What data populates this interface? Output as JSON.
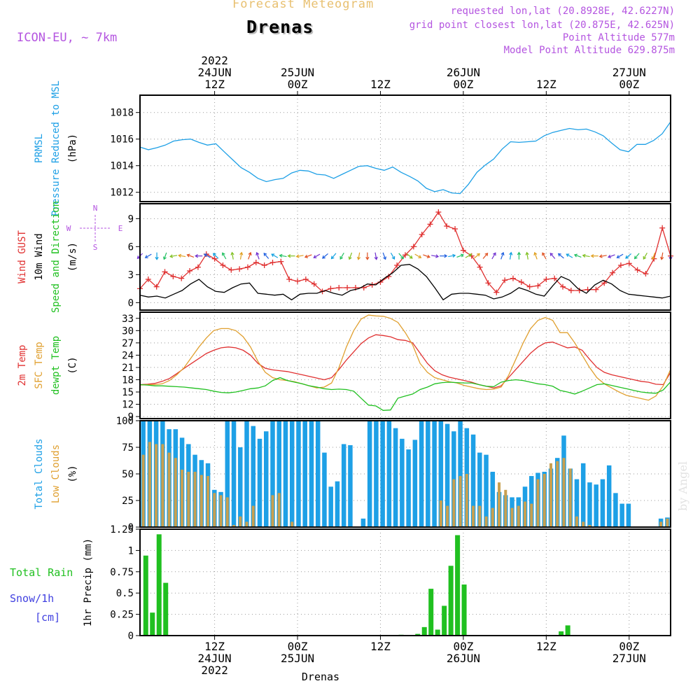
{
  "header": {
    "super_title": "Forecast Meteogram",
    "title": "Drenas",
    "model": "ICON-EU, ~ 7km",
    "requested": "requested lon,lat (20.8928E, 42.6227N)",
    "grid_point": "grid point closest lon,lat (20.875E, 42.625N)",
    "point_altitude": "Point Altitude 577m",
    "model_altitude": "Model Point Altitude 629.875m",
    "footer": "Drenas",
    "credit": "by Angel"
  },
  "time_axis": {
    "range": [
      0,
      64
    ],
    "top_labels": [
      {
        "x": 9,
        "lines": [
          "2022",
          "24JUN",
          "12Z"
        ]
      },
      {
        "x": 19,
        "lines": [
          "25JUN",
          "00Z"
        ]
      },
      {
        "x": 29,
        "lines": [
          "12Z"
        ]
      },
      {
        "x": 39,
        "lines": [
          "26JUN",
          "00Z"
        ]
      },
      {
        "x": 49,
        "lines": [
          "12Z"
        ]
      },
      {
        "x": 59,
        "lines": [
          "27JUN",
          "00Z"
        ]
      }
    ],
    "bottom_labels": [
      {
        "x": 9,
        "lines": [
          "12Z",
          "24JUN",
          "2022"
        ]
      },
      {
        "x": 19,
        "lines": [
          "00Z",
          "25JUN"
        ]
      },
      {
        "x": 29,
        "lines": [
          "12Z"
        ]
      },
      {
        "x": 39,
        "lines": [
          "00Z",
          "26JUN"
        ]
      },
      {
        "x": 49,
        "lines": [
          "12Z"
        ]
      },
      {
        "x": 59,
        "lines": [
          "00Z",
          "27JUN"
        ]
      }
    ]
  },
  "chart_data": [
    {
      "type": "line",
      "panel": "pressure",
      "ylabel_lines": [
        {
          "text": "PRMSL",
          "color": "#1ea0e6"
        },
        {
          "text": "Pressure Reduced to MSL",
          "color": "#1ea0e6"
        },
        {
          "text": "(hPa)",
          "color": "#000000"
        }
      ],
      "ylim": [
        1011.3,
        1019.3
      ],
      "yticks": [
        1012,
        1014,
        1016,
        1018
      ],
      "series": [
        {
          "color": "#1ea0e6",
          "values": [
            1015.4,
            1015.2,
            1015.35,
            1015.55,
            1015.85,
            1015.95,
            1016.0,
            1015.75,
            1015.55,
            1015.65,
            1015.05,
            1014.45,
            1013.85,
            1013.5,
            1013.05,
            1012.8,
            1012.95,
            1013.05,
            1013.45,
            1013.65,
            1013.6,
            1013.35,
            1013.3,
            1013.05,
            1013.35,
            1013.65,
            1013.95,
            1014.0,
            1013.8,
            1013.65,
            1013.9,
            1013.5,
            1013.2,
            1012.85,
            1012.3,
            1012.05,
            1012.2,
            1011.95,
            1011.9,
            1012.6,
            1013.5,
            1014.05,
            1014.5,
            1015.25,
            1015.8,
            1015.75,
            1015.8,
            1015.85,
            1016.25,
            1016.5,
            1016.65,
            1016.8,
            1016.7,
            1016.75,
            1016.55,
            1016.25,
            1015.7,
            1015.2,
            1015.05,
            1015.6,
            1015.6,
            1015.9,
            1016.4,
            1017.3
          ]
        }
      ]
    },
    {
      "type": "line",
      "panel": "wind",
      "ylabel_lines": [
        {
          "text": "Wind GUST",
          "color": "#e03030"
        },
        {
          "text": "10m Wind",
          "color": "#000000"
        },
        {
          "text": "Speed and Direction",
          "color": "#20c020"
        },
        {
          "text": "(m/s)",
          "color": "#000000"
        }
      ],
      "compass": {
        "n": "N",
        "s": "S",
        "w": "W",
        "e": "E"
      },
      "ylim": [
        -0.8,
        10.6
      ],
      "yticks": [
        0,
        3,
        6,
        9
      ],
      "series": [
        {
          "name": "Wind GUST",
          "color": "#e03030",
          "marker": "+",
          "values": [
            1.5,
            2.5,
            1.7,
            3.3,
            2.8,
            2.6,
            3.4,
            3.8,
            5.2,
            4.7,
            4.0,
            3.5,
            3.6,
            3.8,
            4.3,
            4.0,
            4.3,
            4.4,
            2.5,
            2.3,
            2.5,
            2.0,
            1.2,
            1.5,
            1.6,
            1.6,
            1.6,
            1.6,
            1.9,
            2.2,
            2.8,
            4.0,
            5.1,
            6.0,
            7.3,
            8.4,
            9.7,
            8.2,
            7.9,
            5.6,
            5.0,
            3.8,
            2.1,
            1.1,
            2.4,
            2.6,
            2.2,
            1.7,
            1.8,
            2.5,
            2.6,
            1.7,
            1.3,
            1.3,
            1.4,
            1.4,
            2.1,
            3.2,
            4.0,
            4.2,
            3.5,
            3.1,
            4.7,
            8.0,
            5.0
          ]
        },
        {
          "name": "10m Wind",
          "color": "#000000",
          "values": [
            0.8,
            0.6,
            0.7,
            0.5,
            0.9,
            1.3,
            2.0,
            2.5,
            1.7,
            1.2,
            1.1,
            1.6,
            2.0,
            2.1,
            1.0,
            0.9,
            0.8,
            0.9,
            0.3,
            0.9,
            1.0,
            1.0,
            1.3,
            1.0,
            0.8,
            1.3,
            1.5,
            2.0,
            1.9,
            2.6,
            3.2,
            4.0,
            4.1,
            3.6,
            2.8,
            1.6,
            0.3,
            0.9,
            1.0,
            1.0,
            0.9,
            0.8,
            0.4,
            0.6,
            1.0,
            1.6,
            1.3,
            0.9,
            0.7,
            1.8,
            2.8,
            2.4,
            1.5,
            1.0,
            1.9,
            2.4,
            2.0,
            1.3,
            0.9,
            0.8,
            0.7,
            0.6,
            0.5,
            0.7
          ]
        }
      ],
      "arrows": {
        "start_index": 0,
        "y": 5.0,
        "angles_deg": [
          225,
          240,
          180,
          200,
          260,
          280,
          290,
          270,
          300,
          315,
          330,
          350,
          10,
          20,
          340,
          320,
          300,
          280,
          270,
          260,
          250,
          240,
          230,
          220,
          210,
          200,
          190,
          180,
          170,
          160,
          150,
          140,
          130,
          120,
          110,
          100,
          90,
          80,
          70,
          60,
          50,
          40,
          30,
          20,
          10,
          0,
          350,
          340,
          330,
          320,
          310,
          300,
          290,
          280,
          270,
          260,
          250,
          240,
          230,
          220,
          210,
          200,
          190,
          180
        ]
      }
    },
    {
      "type": "line",
      "panel": "temperature",
      "ylabel_lines": [
        {
          "text": "2m Temp",
          "color": "#e03030"
        },
        {
          "text": "SFC Temp",
          "color": "#e0a030"
        },
        {
          "text": "dewpt Temp",
          "color": "#20c020"
        },
        {
          "text": "(C)",
          "color": "#000000"
        }
      ],
      "ylim": [
        8.5,
        34.5
      ],
      "yticks": [
        9,
        12,
        15,
        18,
        21,
        24,
        27,
        30,
        33
      ],
      "series": [
        {
          "name": "2m Temp",
          "color": "#e03030",
          "values": [
            16.8,
            16.9,
            17.1,
            17.6,
            18.3,
            19.5,
            20.8,
            22.0,
            23.2,
            24.4,
            25.2,
            25.8,
            26.0,
            25.8,
            25.2,
            24.0,
            22.0,
            20.8,
            20.4,
            20.2,
            20.0,
            19.6,
            19.2,
            18.8,
            18.4,
            18.0,
            18.5,
            20.5,
            22.8,
            24.8,
            26.8,
            28.2,
            29.0,
            28.8,
            28.5,
            27.8,
            27.6,
            27.0,
            24.5,
            22.0,
            20.2,
            19.2,
            18.6,
            18.2,
            17.8,
            17.4,
            16.8,
            16.4,
            16.0,
            16.5,
            18.5,
            20.5,
            22.5,
            24.5,
            26.0,
            27.0,
            27.2,
            26.5,
            25.8,
            26.0,
            25.2,
            23.0,
            21.0,
            19.8,
            19.2,
            18.8,
            18.4,
            18.0,
            17.6,
            17.4,
            16.9,
            16.8,
            19.8
          ]
        },
        {
          "name": "SFC Temp",
          "color": "#e0a030",
          "values": [
            16.7,
            16.8,
            16.8,
            17.0,
            17.8,
            19.2,
            21.0,
            23.5,
            26.0,
            28.2,
            30.0,
            30.5,
            30.5,
            30.0,
            28.5,
            26.0,
            22.5,
            19.8,
            18.5,
            18.0,
            17.8,
            17.5,
            17.0,
            16.5,
            16.0,
            16.2,
            17.2,
            21.0,
            26.0,
            30.0,
            32.8,
            33.8,
            33.6,
            33.5,
            33.0,
            32.0,
            29.5,
            26.5,
            22.0,
            19.8,
            18.5,
            18.0,
            17.5,
            17.2,
            16.6,
            16.2,
            15.8,
            15.6,
            15.7,
            16.2,
            19.0,
            23.0,
            27.0,
            30.5,
            32.5,
            33.2,
            32.5,
            29.5,
            29.5,
            27.0,
            24.0,
            21.0,
            18.5,
            17.0,
            16.0,
            15.0,
            14.2,
            13.8,
            13.4,
            13.0,
            14.0,
            16.5,
            20.5
          ]
        },
        {
          "name": "dewpt Temp",
          "color": "#20c020",
          "values": [
            16.8,
            16.7,
            16.5,
            16.5,
            16.4,
            16.3,
            16.2,
            16.0,
            15.8,
            15.6,
            15.2,
            14.9,
            14.8,
            15.0,
            15.4,
            15.8,
            16.0,
            16.5,
            17.8,
            18.5,
            17.8,
            17.4,
            17.0,
            16.5,
            16.2,
            15.8,
            15.6,
            15.7,
            15.6,
            15.2,
            13.5,
            11.8,
            11.6,
            10.5,
            10.6,
            13.5,
            14.0,
            14.5,
            15.6,
            16.2,
            17.0,
            17.3,
            17.4,
            17.3,
            17.2,
            17.2,
            16.8,
            16.4,
            16.3,
            17.4,
            17.8,
            18.0,
            17.8,
            17.4,
            17.0,
            16.8,
            16.4,
            15.4,
            15.0,
            14.5,
            15.2,
            16.0,
            16.8,
            17.0,
            16.6,
            16.2,
            15.8,
            15.4,
            15.0,
            14.8,
            14.7,
            15.5,
            17.5
          ]
        }
      ]
    },
    {
      "type": "bar",
      "panel": "clouds",
      "ylabel_lines": [
        {
          "text": "Total Clouds",
          "color": "#1ea0e6"
        },
        {
          "text": "Low Clouds",
          "color": "#e0a030"
        },
        {
          "text": "(%)",
          "color": "#000000"
        }
      ],
      "ylim": [
        0,
        100
      ],
      "yticks": [
        0,
        25,
        50,
        75,
        100
      ],
      "series": [
        {
          "name": "Total Clouds",
          "color": "#1ea0e6",
          "values": [
            100,
            100,
            100,
            100,
            92,
            92,
            84,
            78,
            68,
            63,
            60,
            35,
            33,
            100,
            100,
            75,
            100,
            95,
            83,
            90,
            100,
            100,
            100,
            100,
            100,
            100,
            100,
            100,
            70,
            38,
            43,
            78,
            77,
            0,
            8,
            100,
            100,
            100,
            100,
            93,
            83,
            73,
            82,
            100,
            100,
            100,
            100,
            97,
            90,
            100,
            93,
            87,
            70,
            68,
            52,
            33,
            30,
            28,
            28,
            38,
            48,
            51,
            52,
            55,
            65,
            86,
            55,
            45,
            60,
            42,
            40,
            45,
            58,
            32,
            22,
            22,
            0,
            0,
            0,
            0,
            8,
            9
          ]
        },
        {
          "name": "Low Clouds",
          "color": "#c8a050",
          "values": [
            68,
            80,
            78,
            78,
            70,
            65,
            54,
            52,
            52,
            49,
            48,
            32,
            30,
            28,
            2,
            10,
            5,
            20,
            0,
            0,
            30,
            32,
            0,
            5,
            0,
            0,
            0,
            0,
            0,
            0,
            0,
            0,
            0,
            0,
            0,
            0,
            0,
            0,
            0,
            0,
            0,
            0,
            0,
            0,
            0,
            0,
            25,
            20,
            45,
            48,
            50,
            20,
            20,
            10,
            18,
            42,
            35,
            18,
            20,
            24,
            22,
            45,
            50,
            60,
            62,
            65,
            55,
            10,
            5,
            2,
            0,
            0,
            0,
            0,
            0,
            0,
            0,
            0,
            0,
            0,
            5,
            8
          ]
        }
      ]
    },
    {
      "type": "bar",
      "panel": "precip",
      "ylabel_lines": [
        {
          "text": "1hr Precip (mm)",
          "color": "#000000"
        }
      ],
      "left_labels": [
        {
          "text": "Total  Rain",
          "color": "#20c020"
        },
        {
          "text": "Snow/1h",
          "color": "#4040e0"
        },
        {
          "text": "[cm]",
          "color": "#4040e0"
        }
      ],
      "ylim": [
        0,
        1.25
      ],
      "yticks": [
        0,
        0.25,
        0.5,
        0.75,
        1,
        1.25
      ],
      "series": [
        {
          "name": "Total Rain",
          "color": "#20c020",
          "values": [
            {
              "x": 0.7,
              "y": 0.94
            },
            {
              "x": 1.5,
              "y": 0.27
            },
            {
              "x": 2.3,
              "y": 1.19
            },
            {
              "x": 3.1,
              "y": 0.62
            },
            {
              "x": 31.5,
              "y": 0.01
            },
            {
              "x": 33.5,
              "y": 0.02
            },
            {
              "x": 34.3,
              "y": 0.1
            },
            {
              "x": 35.1,
              "y": 0.55
            },
            {
              "x": 35.9,
              "y": 0.07
            },
            {
              "x": 36.7,
              "y": 0.35
            },
            {
              "x": 37.5,
              "y": 0.82
            },
            {
              "x": 38.3,
              "y": 1.18
            },
            {
              "x": 39.1,
              "y": 0.6
            },
            {
              "x": 50.8,
              "y": 0.05
            },
            {
              "x": 51.6,
              "y": 0.12
            }
          ]
        }
      ]
    }
  ]
}
